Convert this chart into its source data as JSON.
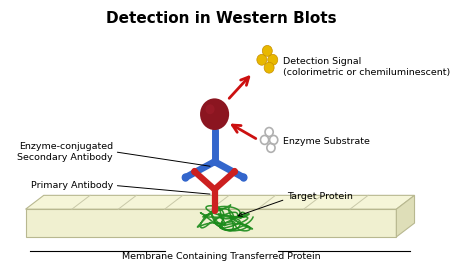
{
  "title": "Detection in Western Blots",
  "title_fontsize": 11,
  "title_fontweight": "bold",
  "bg_color": "#ffffff",
  "membrane_top_color": "#f5f5d8",
  "membrane_front_color": "#f0f0d0",
  "membrane_right_color": "#dedeb8",
  "membrane_border": "#b8b890",
  "membrane_stripe_color": "#c8c8a8",
  "blue_color": "#3366cc",
  "red_color": "#cc2020",
  "dark_red_color": "#8b1520",
  "green_color": "#1a8a1a",
  "yellow_color": "#e8b800",
  "yellow2_color": "#f0c800",
  "gray_color": "#b0b0b0",
  "arrow_red": "#cc1010",
  "label_fontsize": 6.8,
  "membrane_label": "Membrane Containing Transferred Protein",
  "label_enzyme": "Enzyme-conjugated\nSecondary Antibody",
  "label_primary": "Primary Antibody",
  "label_target": "Target Protein",
  "label_signal": "Detection Signal\n(colorimetric or chemiluminescent)",
  "label_substrate": "Enzyme Substrate"
}
